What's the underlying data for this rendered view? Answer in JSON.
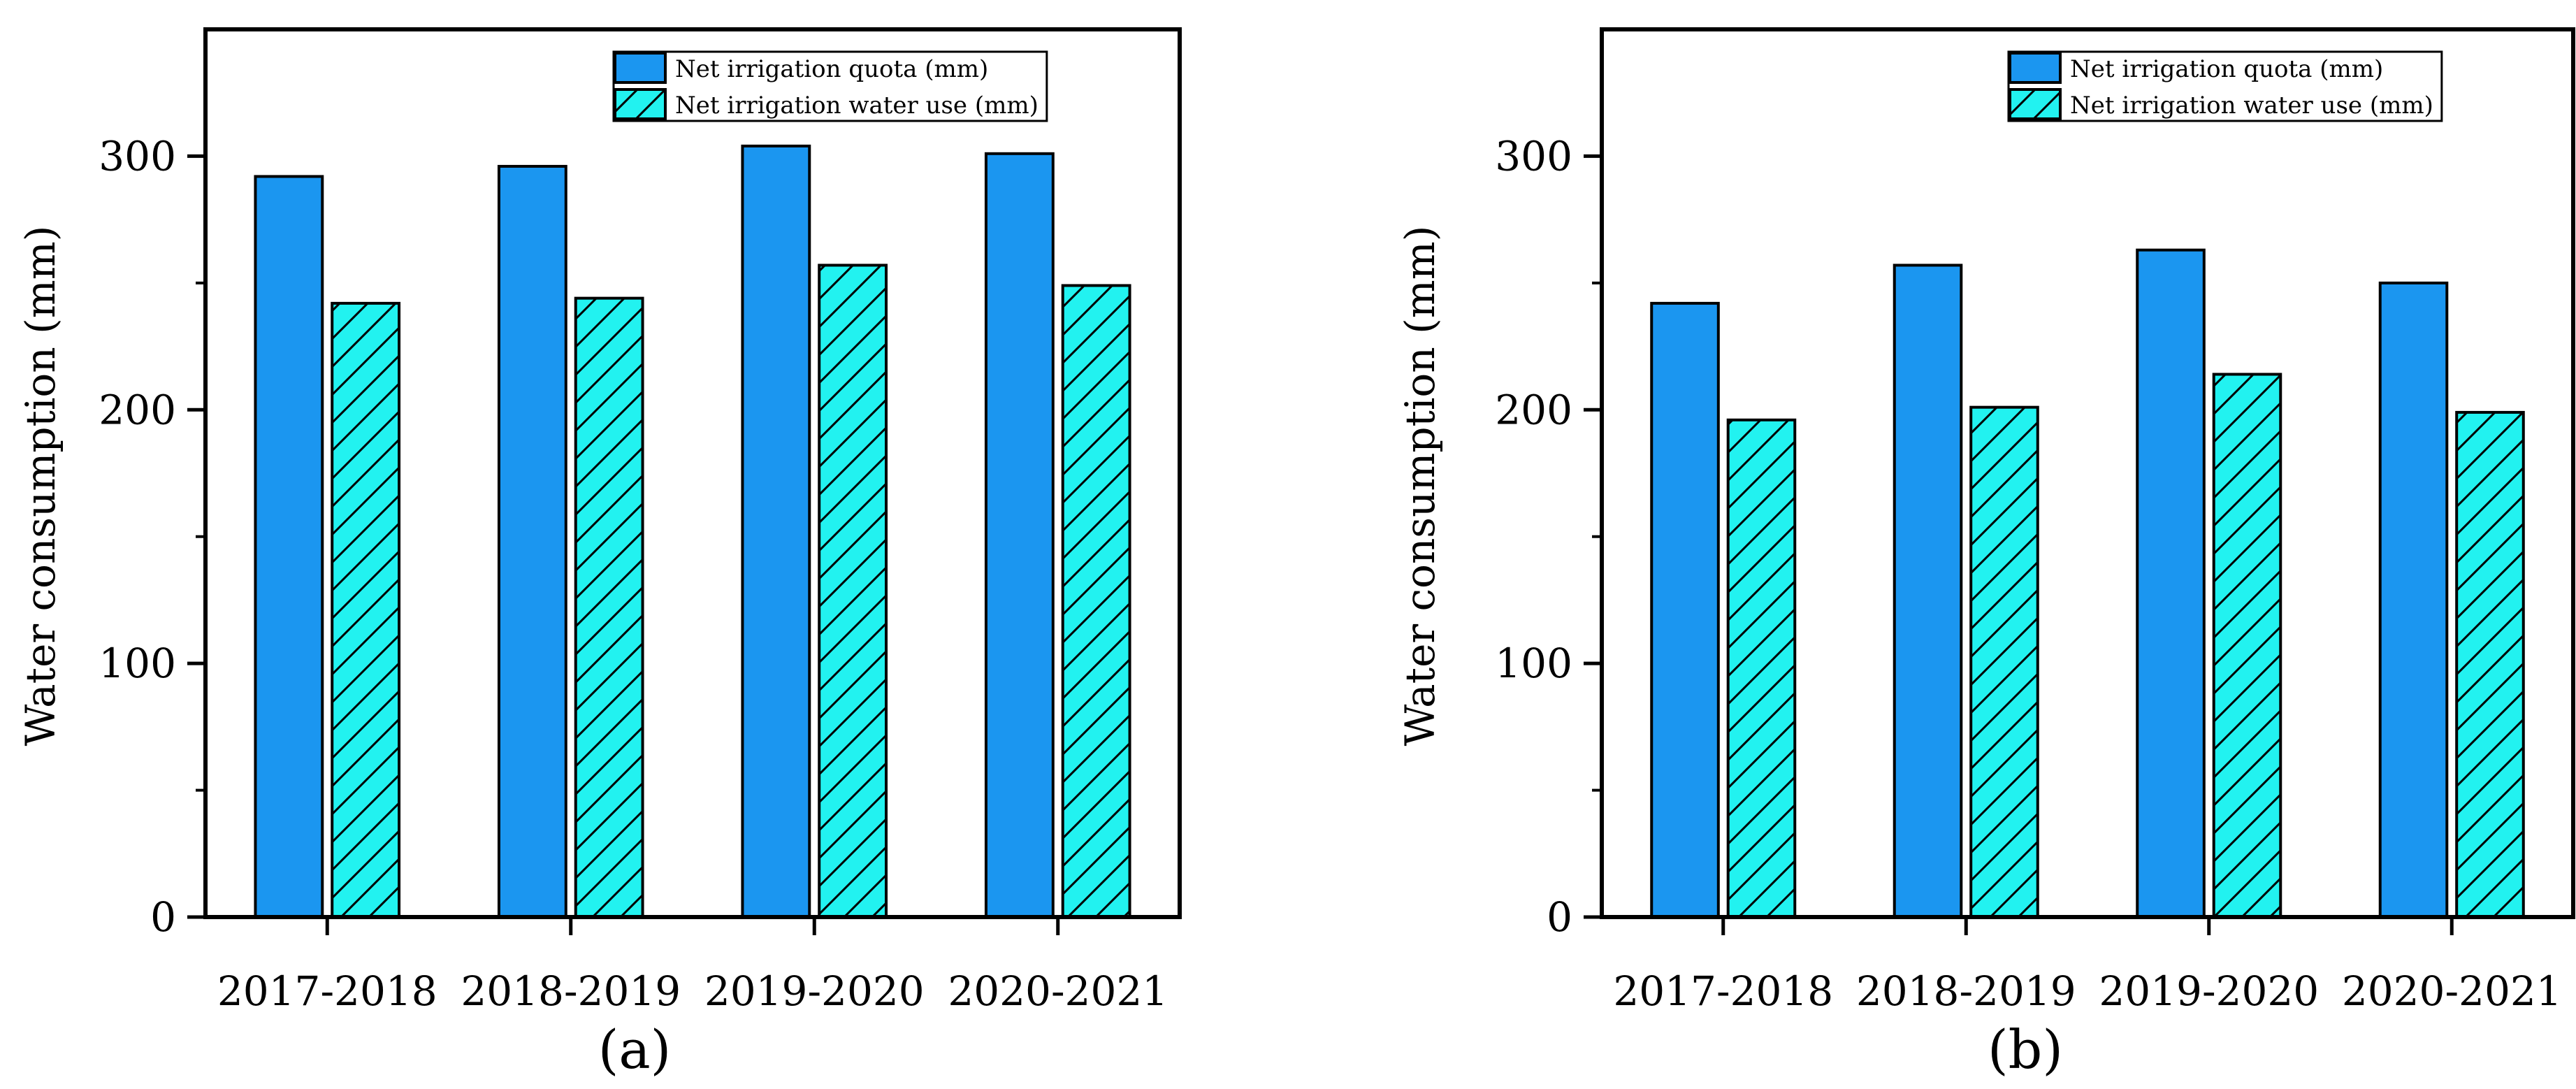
{
  "figure": {
    "description_colors": {
      "series_quota": "#1b96f0",
      "series_use": "#22f2f0",
      "axis": "#000000"
    }
  },
  "chart_data": [
    {
      "type": "bar",
      "panel_label": "(a)",
      "ylabel": "Water consumption (mm)",
      "xlabel": "",
      "ylim": [
        0,
        350
      ],
      "yticks": [
        0,
        100,
        200,
        300
      ],
      "ytick_labels": [
        "0",
        "100",
        "200",
        "300"
      ],
      "categories": [
        "2017-2018",
        "2018-2019",
        "2019-2020",
        "2020-2021"
      ],
      "series": [
        {
          "name": "Net irrigation quota (mm)",
          "color": "#1b96f0",
          "hatch": false,
          "values": [
            292,
            296,
            304,
            301
          ]
        },
        {
          "name": "Net irrigation water use (mm)",
          "color": "#22f2f0",
          "hatch": true,
          "values": [
            242,
            244,
            257,
            249
          ]
        }
      ],
      "legend": "top-right"
    },
    {
      "type": "bar",
      "panel_label": "(b)",
      "ylabel": "Water consumption (mm)",
      "xlabel": "",
      "ylim": [
        0,
        350
      ],
      "yticks": [
        0,
        100,
        200,
        300
      ],
      "ytick_labels": [
        "0",
        "100",
        "200",
        "300"
      ],
      "categories": [
        "2017-2018",
        "2018-2019",
        "2019-2020",
        "2020-2021"
      ],
      "series": [
        {
          "name": "Net irrigation quota (mm)",
          "color": "#1b96f0",
          "hatch": false,
          "values": [
            242,
            257,
            263,
            250
          ]
        },
        {
          "name": "Net irrigation water use (mm)",
          "color": "#22f2f0",
          "hatch": true,
          "values": [
            196,
            201,
            214,
            199
          ]
        }
      ],
      "legend": "top-right"
    }
  ]
}
